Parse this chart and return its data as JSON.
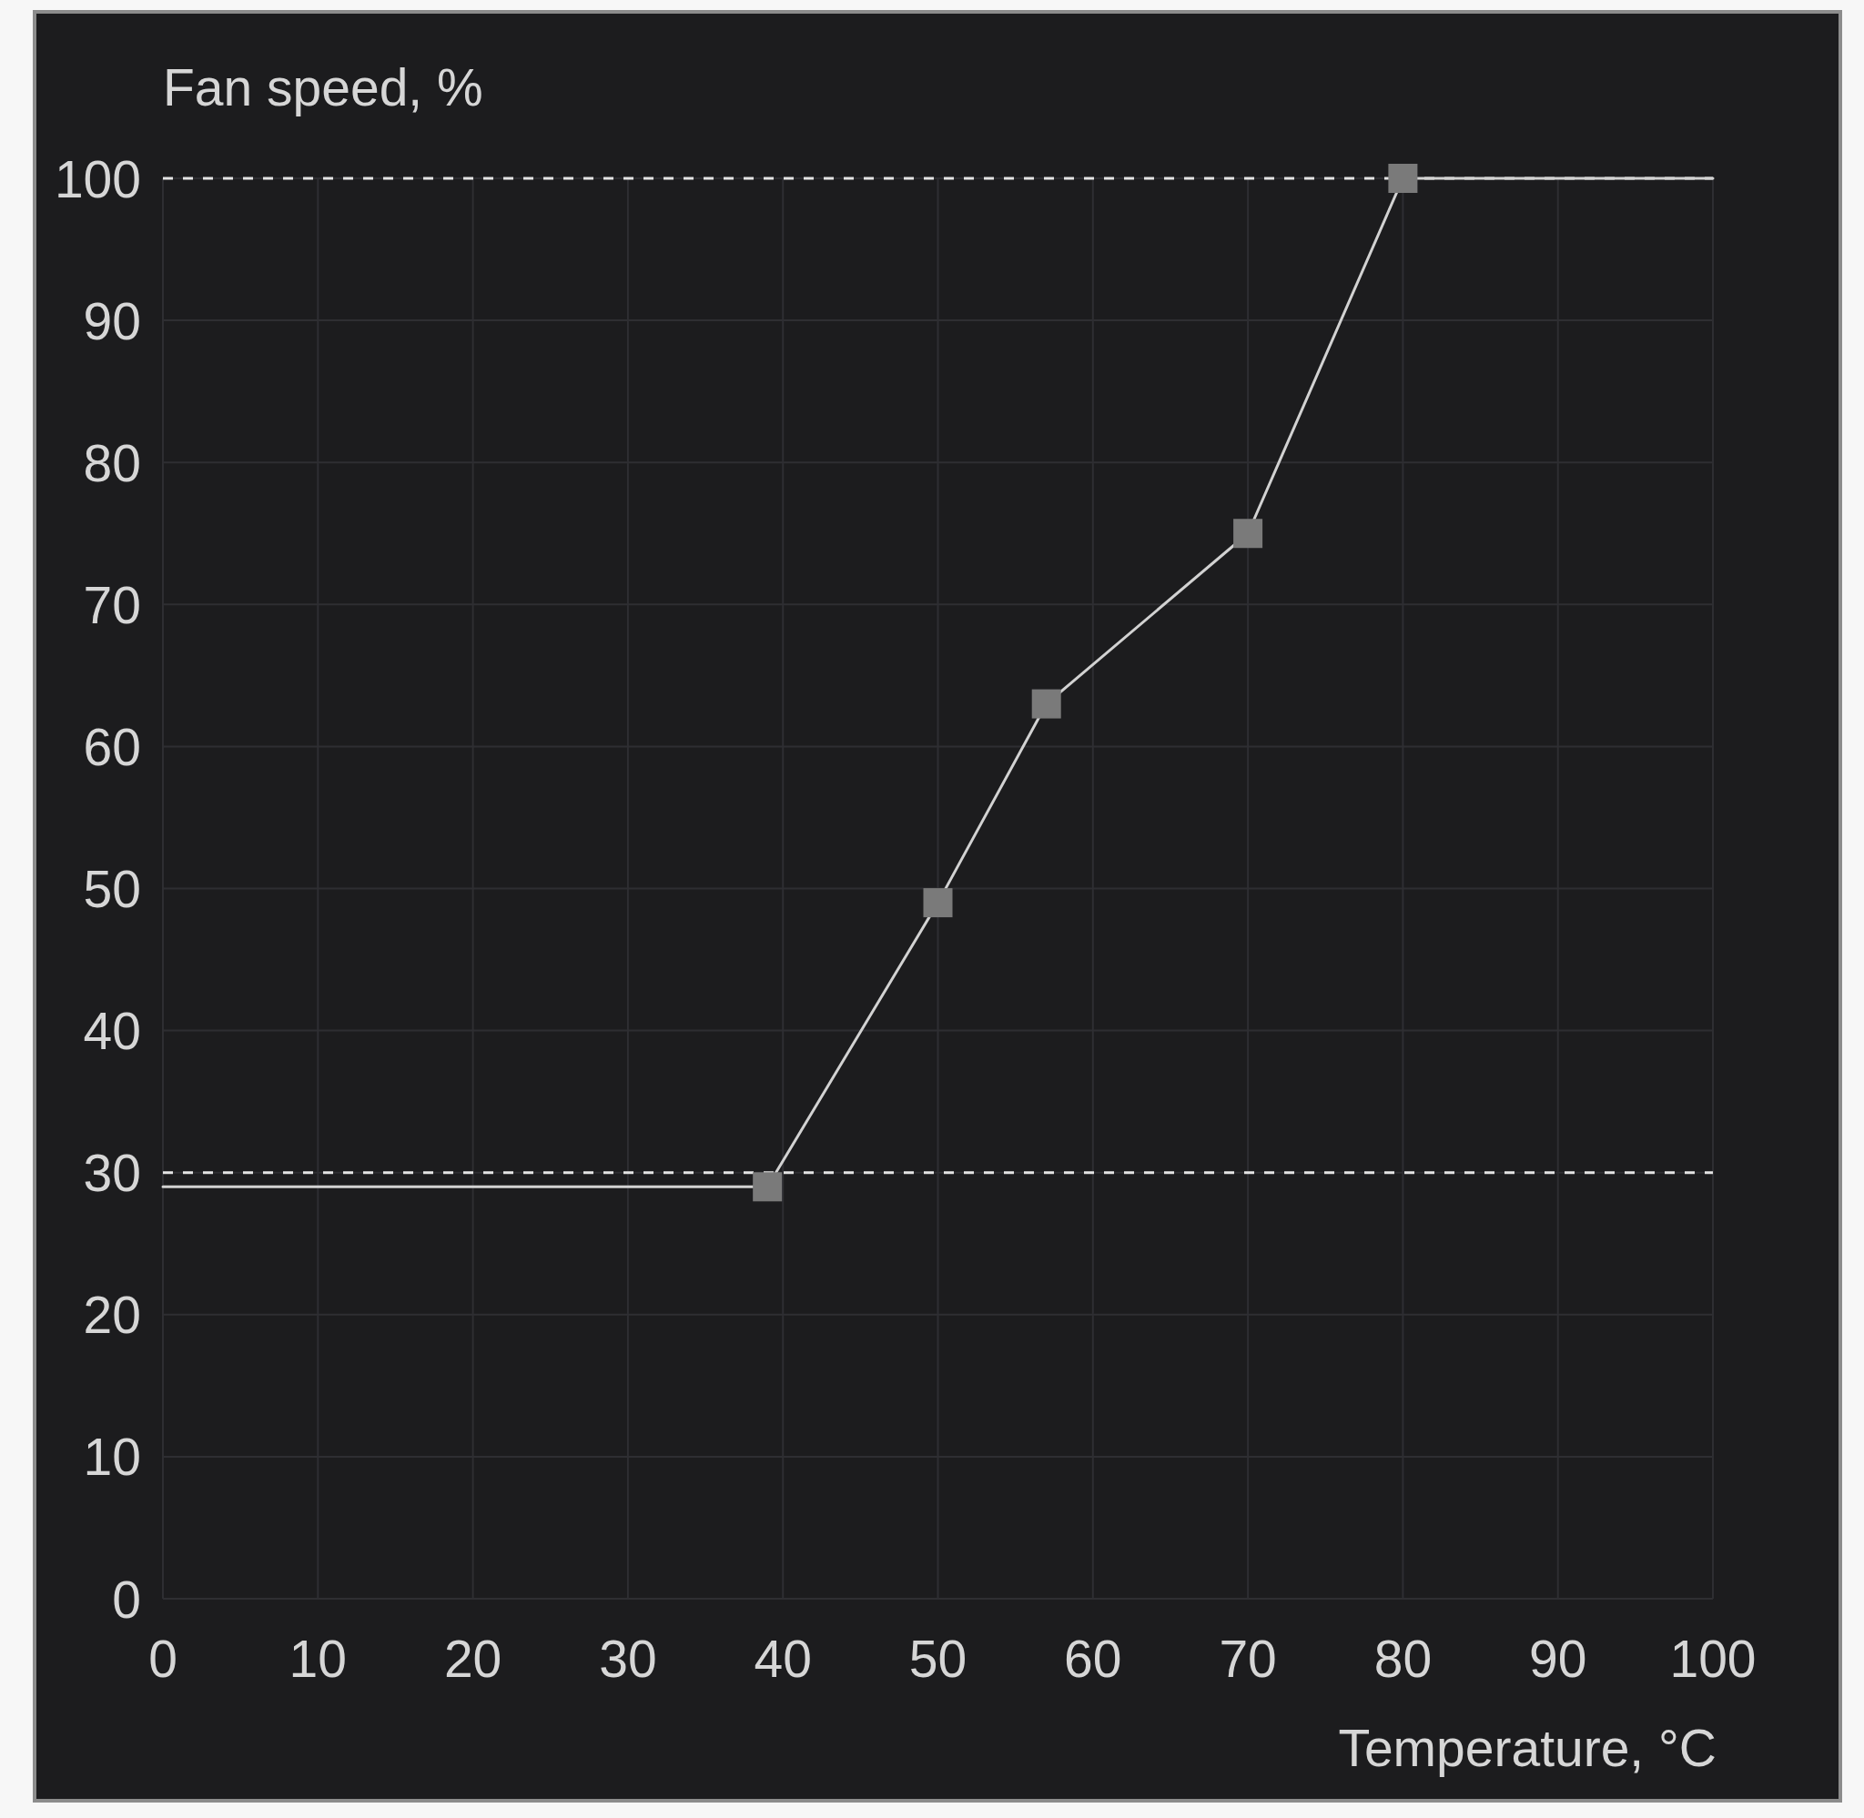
{
  "chart_data": {
    "type": "line",
    "xlabel": "Temperature, °C",
    "ylabel": "Fan speed, %",
    "xlim": [
      0,
      100
    ],
    "ylim": [
      0,
      100
    ],
    "xticks": [
      0,
      10,
      20,
      30,
      40,
      50,
      60,
      70,
      80,
      90,
      100
    ],
    "yticks": [
      0,
      10,
      20,
      30,
      40,
      50,
      60,
      70,
      80,
      90,
      100
    ],
    "grid": true,
    "ref_lines": [
      {
        "axis": "y",
        "value": 30,
        "color": "#e4e4e4",
        "line_style": "dashed"
      },
      {
        "axis": "y",
        "value": 100,
        "color": "#e4e4e4",
        "line_style": "dashed"
      }
    ],
    "series": [
      {
        "color": "#d2d2d2",
        "marker": "none",
        "x": [
          0,
          39,
          50,
          57,
          70,
          80,
          100
        ],
        "values": [
          29,
          29,
          49,
          63,
          75,
          100,
          100
        ]
      },
      {
        "type": "scatter",
        "color": "#7a7a7a",
        "marker": "square",
        "x": [
          39,
          50,
          57,
          70,
          80
        ],
        "values": [
          29,
          49,
          63,
          75,
          100
        ]
      }
    ]
  }
}
